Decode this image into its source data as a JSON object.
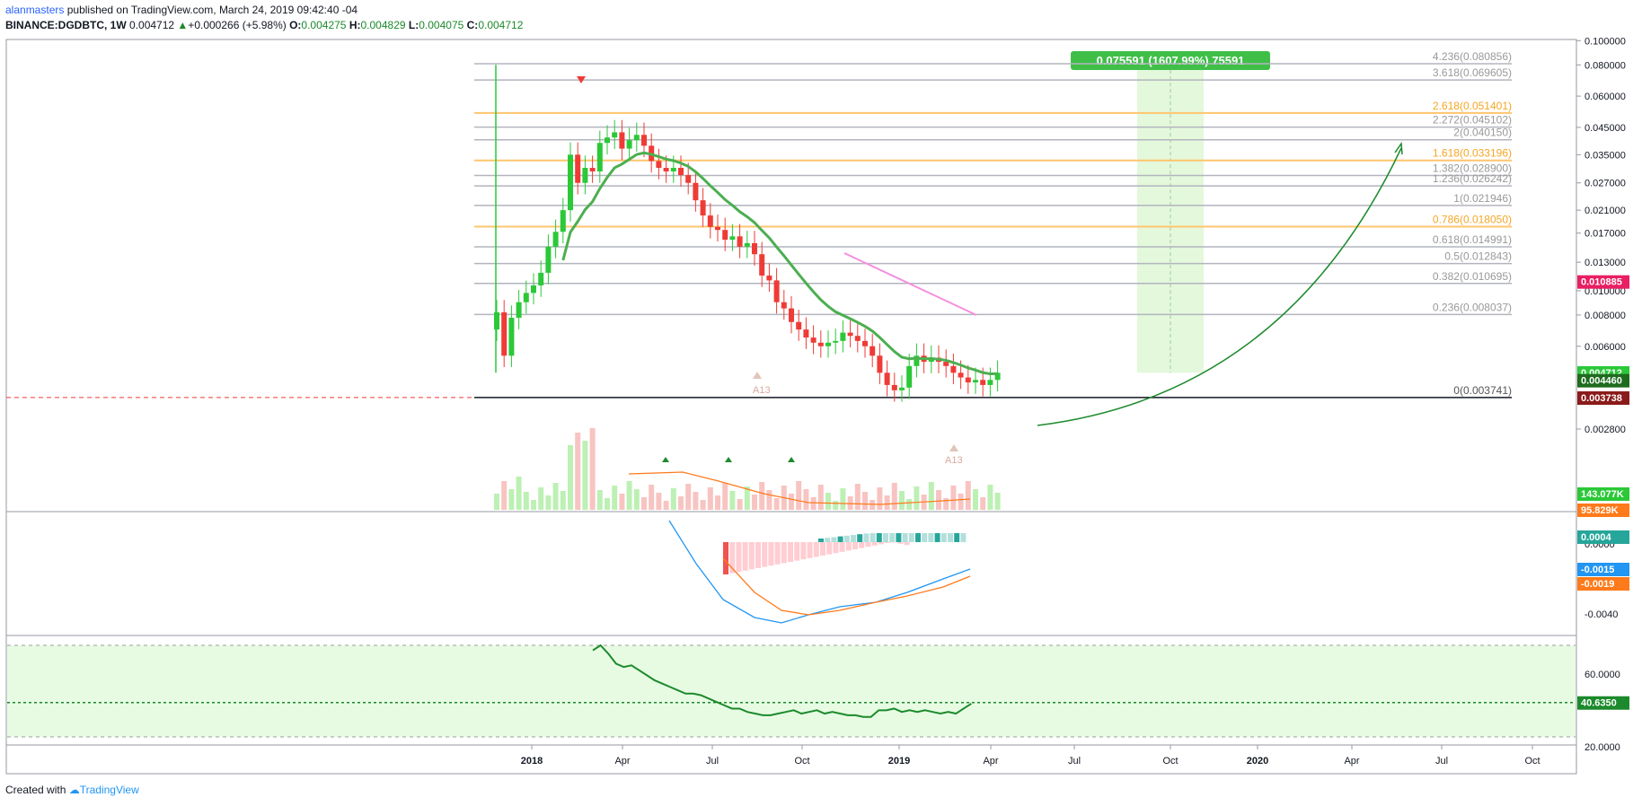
{
  "header": {
    "author": "alanmasters",
    "published": "published on TradingView.com, March 24, 2019 09:42:40 -04",
    "symbol": "BINANCE:DGDBTC, 1W",
    "last": "0.004712",
    "change": "+0.000266 (+5.98%)",
    "o_label": "O:",
    "o": "0.004275",
    "h_label": "H:",
    "h": "0.004829",
    "l_label": "L:",
    "l": "0.004075",
    "c_label": "C:",
    "c": "0.004712"
  },
  "footer": {
    "created_with": "Created with",
    "brand": "TradingView"
  },
  "colors": {
    "up": "#2bc838",
    "down": "#ef3b36",
    "ema": "#4caf50",
    "macd": "#2196f3",
    "signal": "#ff7a1a",
    "fib_orange": "#ffc56e",
    "fib_grey": "#b2b5be",
    "rsi_bg": "#e7fbe3",
    "target_box": "#e4f8dc"
  },
  "chart_data": [
    {
      "type": "candlestick",
      "scale": "log",
      "title": "",
      "price_axis_ticks": [
        "0.100000",
        "0.080000",
        "0.060000",
        "0.045000",
        "0.035000",
        "0.027000",
        "0.021000",
        "0.017000",
        "0.013000",
        "0.010000",
        "0.008000",
        "0.006000",
        "0.002800"
      ],
      "time_axis_ticks": [
        "2018",
        "Apr",
        "Jul",
        "Oct",
        "2019",
        "Apr",
        "Jul",
        "Oct",
        "2020",
        "Apr",
        "Jul",
        "Oct"
      ],
      "fib_levels": [
        {
          "label": "4.236(0.080856)",
          "value": 0.080856,
          "highlight": false
        },
        {
          "label": "3.618(0.069605)",
          "value": 0.069605,
          "highlight": false
        },
        {
          "label": "2.618(0.051401)",
          "value": 0.051401,
          "highlight": true
        },
        {
          "label": "2.272(0.045102)",
          "value": 0.045102,
          "highlight": false
        },
        {
          "label": "2(0.040150)",
          "value": 0.04015,
          "highlight": false
        },
        {
          "label": "1.618(0.033196)",
          "value": 0.033196,
          "highlight": true
        },
        {
          "label": "1.382(0.028900)",
          "value": 0.0289,
          "highlight": false
        },
        {
          "label": "1.236(0.026242)",
          "value": 0.026242,
          "highlight": false
        },
        {
          "label": "1(0.021946)",
          "value": 0.021946,
          "highlight": false
        },
        {
          "label": "0.786(0.018050)",
          "value": 0.01805,
          "highlight": true
        },
        {
          "label": "0.618(0.014991)",
          "value": 0.014991,
          "highlight": false
        },
        {
          "label": "0.5(0.012843)",
          "value": 0.012843,
          "highlight": false
        },
        {
          "label": "0.382(0.010695)",
          "value": 0.010695,
          "highlight": false
        },
        {
          "label": "0.236(0.008037)",
          "value": 0.008037,
          "highlight": false
        },
        {
          "label": "0(0.003741)",
          "value": 0.003741,
          "highlight": false
        }
      ],
      "price_badges": [
        {
          "label": "0.010885",
          "value": 0.010885,
          "color": "#e91e63"
        },
        {
          "label": "0.004712",
          "value": 0.004712,
          "color": "#2bc838"
        },
        {
          "label": "0.004460",
          "value": 0.00446,
          "color": "#1e6b1e"
        },
        {
          "label": "0.003738",
          "value": 0.003738,
          "color": "#8b1a1a"
        },
        {
          "label": "143.077K",
          "value": 0.00245,
          "color": "#2bc838"
        },
        {
          "label": "95.829K",
          "value": 0.00227,
          "color": "#ff7a1a"
        }
      ],
      "target_label": "0.075591 (1607.99%) 75591",
      "closes": [
        0.0082,
        0.0055,
        0.0078,
        0.009,
        0.0098,
        0.0105,
        0.0118,
        0.015,
        0.0172,
        0.021,
        0.035,
        0.027,
        0.031,
        0.03,
        0.039,
        0.041,
        0.043,
        0.037,
        0.04,
        0.042,
        0.038,
        0.033,
        0.031,
        0.03,
        0.031,
        0.029,
        0.027,
        0.023,
        0.02,
        0.018,
        0.0175,
        0.016,
        0.0165,
        0.015,
        0.0155,
        0.014,
        0.0115,
        0.011,
        0.009,
        0.0085,
        0.0075,
        0.007,
        0.0065,
        0.0062,
        0.006,
        0.0062,
        0.0063,
        0.0068,
        0.0066,
        0.0063,
        0.006,
        0.0055,
        0.0047,
        0.0042,
        0.004,
        0.0041,
        0.005,
        0.0055,
        0.0052,
        0.0054,
        0.0052,
        0.005,
        0.0047,
        0.0045,
        0.0043,
        0.0044,
        0.0042,
        0.0044,
        0.0047
      ],
      "annotations": [
        "A13",
        "A13"
      ]
    },
    {
      "type": "bar+line",
      "title": "",
      "name": "MACD",
      "axis_ticks": [
        "0.0000",
        "-0.0040"
      ],
      "badges": [
        {
          "label": "0.0004",
          "color": "#26a69a"
        },
        {
          "label": "-0.0015",
          "color": "#2196f3"
        },
        {
          "label": "-0.0019",
          "color": "#ff7a1a"
        }
      ]
    },
    {
      "type": "line",
      "title": "",
      "name": "RSI",
      "axis_ticks": [
        "60.0000",
        "20.0000"
      ],
      "badge": "40.6350",
      "value": 40.635
    }
  ]
}
